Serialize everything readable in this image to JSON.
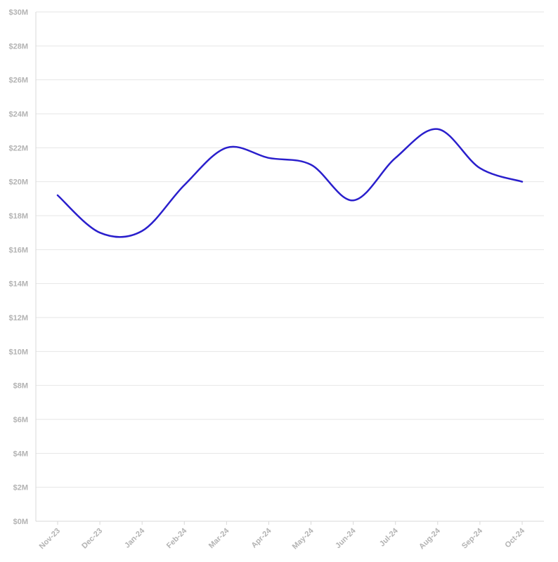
{
  "chart_data": {
    "type": "line",
    "categories": [
      "Nov-23",
      "Dec-23",
      "Jan-24",
      "Feb-24",
      "Mar-24",
      "Apr-24",
      "May-24",
      "Jun-24",
      "Jul-24",
      "Aug-24",
      "Sep-24",
      "Oct-24"
    ],
    "series": [
      {
        "values": [
          19.2,
          17.0,
          17.1,
          19.8,
          22.0,
          21.4,
          21.0,
          18.9,
          21.4,
          23.1,
          20.8,
          20.0
        ]
      }
    ],
    "y_ticks": [
      "$0M",
      "$2M",
      "$4M",
      "$6M",
      "$8M",
      "$10M",
      "$12M",
      "$14M",
      "$16M",
      "$18M",
      "$20M",
      "$22M",
      "$24M",
      "$26M",
      "$28M",
      "$30M"
    ],
    "ylim": [
      0,
      30
    ],
    "grid": true,
    "legend": "none",
    "colors": {
      "line": "#2a1fcc",
      "grid": "#e6e6e6",
      "tick_text": "#b3b3b3"
    }
  }
}
